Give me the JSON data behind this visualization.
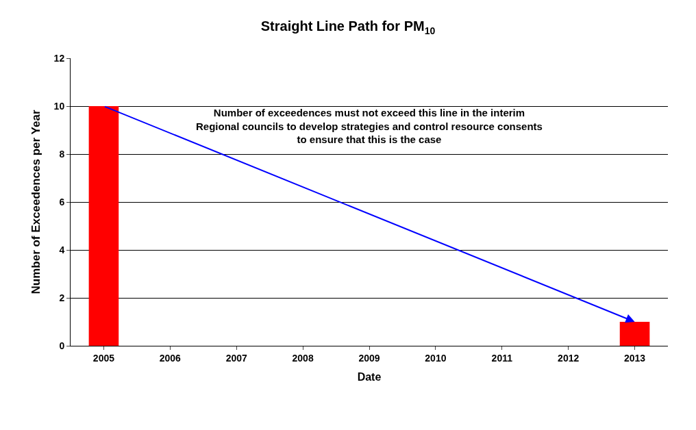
{
  "chart_data": {
    "type": "bar",
    "title": "Straight Line Path for PM$_{10}$",
    "xlabel": "Date",
    "ylabel": "Number of Exceedences per Year",
    "categories": [
      "2005",
      "2006",
      "2007",
      "2008",
      "2009",
      "2010",
      "2011",
      "2012",
      "2013"
    ],
    "series": [
      {
        "color": "#ff0000",
        "values": [
          10,
          null,
          null,
          null,
          null,
          null,
          null,
          null,
          1
        ]
      }
    ],
    "annotations": [
      "Number of exceedences must not exceed this line in the interim\nRegional councils to develop strategies and control resource consents\nto ensure that this is the case"
    ],
    "ylim": [
      0,
      12
    ],
    "yticks": [
      0,
      2,
      4,
      6,
      8,
      10,
      12
    ],
    "grid": "y"
  }
}
